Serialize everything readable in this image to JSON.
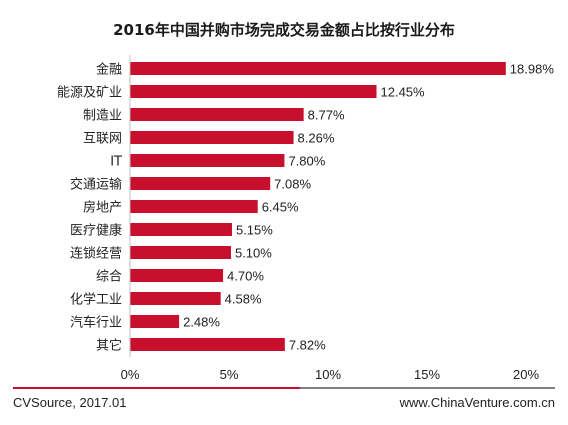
{
  "chart_data": {
    "type": "bar",
    "orientation": "horizontal",
    "title": "2016年中国并购市场完成交易金额占比按行业分布",
    "categories": [
      "金融",
      "能源及矿业",
      "制造业",
      "互联网",
      "IT",
      "交通运输",
      "房地产",
      "医疗健康",
      "连锁经营",
      "综合",
      "化学工业",
      "汽车行业",
      "其它"
    ],
    "values": [
      18.98,
      12.45,
      8.77,
      8.26,
      7.8,
      7.08,
      6.45,
      5.15,
      5.1,
      4.7,
      4.58,
      2.48,
      7.82
    ],
    "value_labels": [
      "18.98%",
      "12.45%",
      "8.77%",
      "8.26%",
      "7.80%",
      "7.08%",
      "6.45%",
      "5.15%",
      "5.10%",
      "4.70%",
      "4.58%",
      "2.48%",
      "7.82%"
    ],
    "xlim": [
      0,
      20
    ],
    "xticks": [
      0,
      5,
      10,
      15,
      20
    ],
    "xtick_labels": [
      "0%",
      "5%",
      "10%",
      "15%",
      "20%"
    ],
    "grid": false,
    "legend": "none",
    "bar_color": "#c8102e"
  },
  "footer": {
    "source": "CVSource, 2017.01",
    "website": "www.ChinaVenture.com.cn",
    "divider_color_left": "#c8102e",
    "divider_color_right": "#7f7f7f"
  }
}
